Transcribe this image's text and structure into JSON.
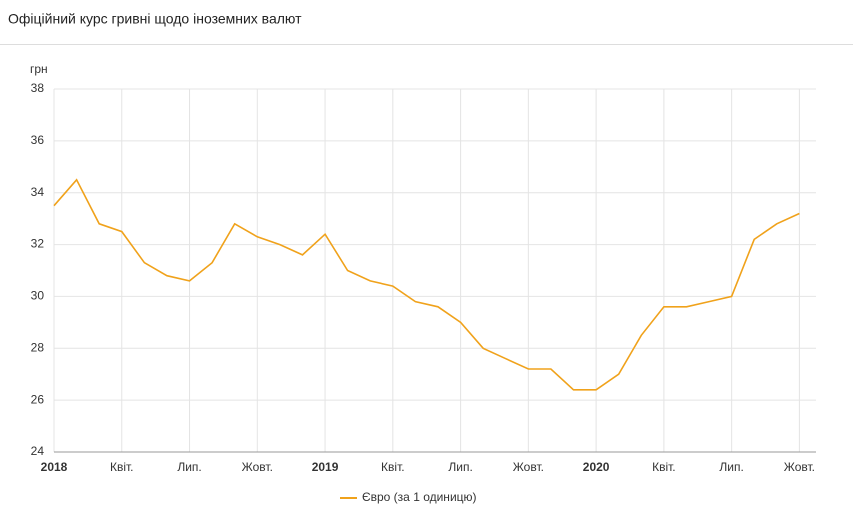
{
  "chart_data": {
    "type": "line",
    "title": "Офіційний курс гривні щодо іноземних валют",
    "y_label": "грн",
    "x": [
      "2018-01",
      "2018-02",
      "2018-03",
      "2018-04",
      "2018-05",
      "2018-06",
      "2018-07",
      "2018-08",
      "2018-09",
      "2018-10",
      "2018-11",
      "2018-12",
      "2019-01",
      "2019-02",
      "2019-03",
      "2019-04",
      "2019-05",
      "2019-06",
      "2019-07",
      "2019-08",
      "2019-09",
      "2019-10",
      "2019-11",
      "2019-12",
      "2020-01",
      "2020-02",
      "2020-03",
      "2020-04",
      "2020-05",
      "2020-06",
      "2020-07",
      "2020-08",
      "2020-09",
      "2020-10"
    ],
    "series": [
      {
        "name": "Євро (за 1 одиницю)",
        "color": "#f0a21b",
        "values": [
          33.5,
          34.5,
          32.8,
          32.5,
          31.3,
          30.8,
          30.6,
          31.3,
          32.8,
          32.3,
          32.0,
          31.6,
          32.4,
          31.0,
          30.6,
          30.4,
          29.8,
          29.6,
          29.0,
          28.0,
          27.6,
          27.2,
          27.2,
          26.4,
          26.4,
          27.0,
          28.5,
          29.6,
          29.6,
          29.8,
          30.0,
          32.2,
          32.8,
          33.2
        ]
      }
    ],
    "xlim": [
      "2018-01",
      "2020-11"
    ],
    "xticks": [
      {
        "value": "2018-01",
        "label": "2018"
      },
      {
        "value": "2018-04",
        "label": "Квіт."
      },
      {
        "value": "2018-07",
        "label": "Лип."
      },
      {
        "value": "2018-10",
        "label": "Жовт."
      },
      {
        "value": "2019-01",
        "label": "2019"
      },
      {
        "value": "2019-04",
        "label": "Квіт."
      },
      {
        "value": "2019-07",
        "label": "Лип."
      },
      {
        "value": "2019-10",
        "label": "Жовт."
      },
      {
        "value": "2020-01",
        "label": "2020"
      },
      {
        "value": "2020-04",
        "label": "Квіт."
      },
      {
        "value": "2020-07",
        "label": "Лип."
      },
      {
        "value": "2020-10",
        "label": "Жовт."
      }
    ],
    "ylim": [
      24,
      38
    ],
    "yticks": [
      24,
      26,
      28,
      30,
      32,
      34,
      36,
      38
    ],
    "grid": true,
    "legend": "bottom"
  }
}
